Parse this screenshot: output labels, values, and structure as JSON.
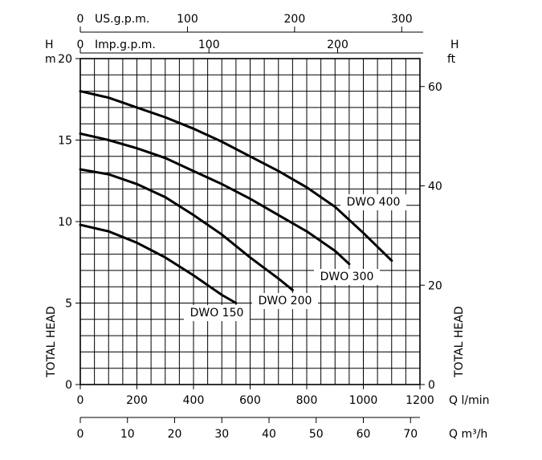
{
  "chart_data": {
    "type": "line",
    "axes": {
      "left_unit_top": "H",
      "left_unit_bottom": "m",
      "right_unit_top": "H",
      "right_unit_bottom": "ft",
      "left_title": "TOTAL HEAD",
      "right_title": "TOTAL HEAD",
      "top1_unit": "US.g.p.m.",
      "top2_unit": "Imp.g.p.m.",
      "bottom1_unit": "Q l/min",
      "bottom2_unit": "Q m³/h",
      "ylim": [
        0,
        20
      ],
      "xlim": [
        0,
        1200
      ],
      "left_ticks": [
        0,
        5,
        10,
        15,
        20
      ],
      "right_ticks": [
        0,
        20,
        40,
        60
      ],
      "bottom1_ticks": [
        0,
        200,
        400,
        600,
        800,
        1000,
        1200
      ],
      "bottom2_ticks": [
        0,
        10,
        20,
        30,
        40,
        50,
        60,
        70
      ],
      "top1_ticks": [
        0,
        100,
        200,
        300
      ],
      "top2_ticks": [
        0,
        100,
        200
      ]
    },
    "series": [
      {
        "name": "DWO 150",
        "x": [
          0,
          100,
          200,
          300,
          400,
          450,
          500,
          550
        ],
        "y": [
          9.8,
          9.4,
          8.7,
          7.8,
          6.7,
          6.1,
          5.5,
          5.0
        ]
      },
      {
        "name": "DWO 200",
        "x": [
          0,
          100,
          200,
          300,
          400,
          500,
          600,
          700,
          750
        ],
        "y": [
          13.2,
          12.9,
          12.3,
          11.5,
          10.4,
          9.2,
          7.8,
          6.5,
          5.8
        ]
      },
      {
        "name": "DWO 300",
        "x": [
          0,
          100,
          200,
          300,
          400,
          500,
          600,
          700,
          800,
          900,
          950
        ],
        "y": [
          15.4,
          15.0,
          14.5,
          13.9,
          13.1,
          12.3,
          11.4,
          10.4,
          9.4,
          8.2,
          7.4
        ]
      },
      {
        "name": "DWO 400",
        "x": [
          0,
          100,
          200,
          300,
          400,
          500,
          600,
          700,
          800,
          900,
          1000,
          1100
        ],
        "y": [
          18.0,
          17.6,
          17.0,
          16.4,
          15.7,
          14.9,
          14.0,
          13.1,
          12.1,
          10.9,
          9.3,
          7.6
        ]
      }
    ]
  }
}
